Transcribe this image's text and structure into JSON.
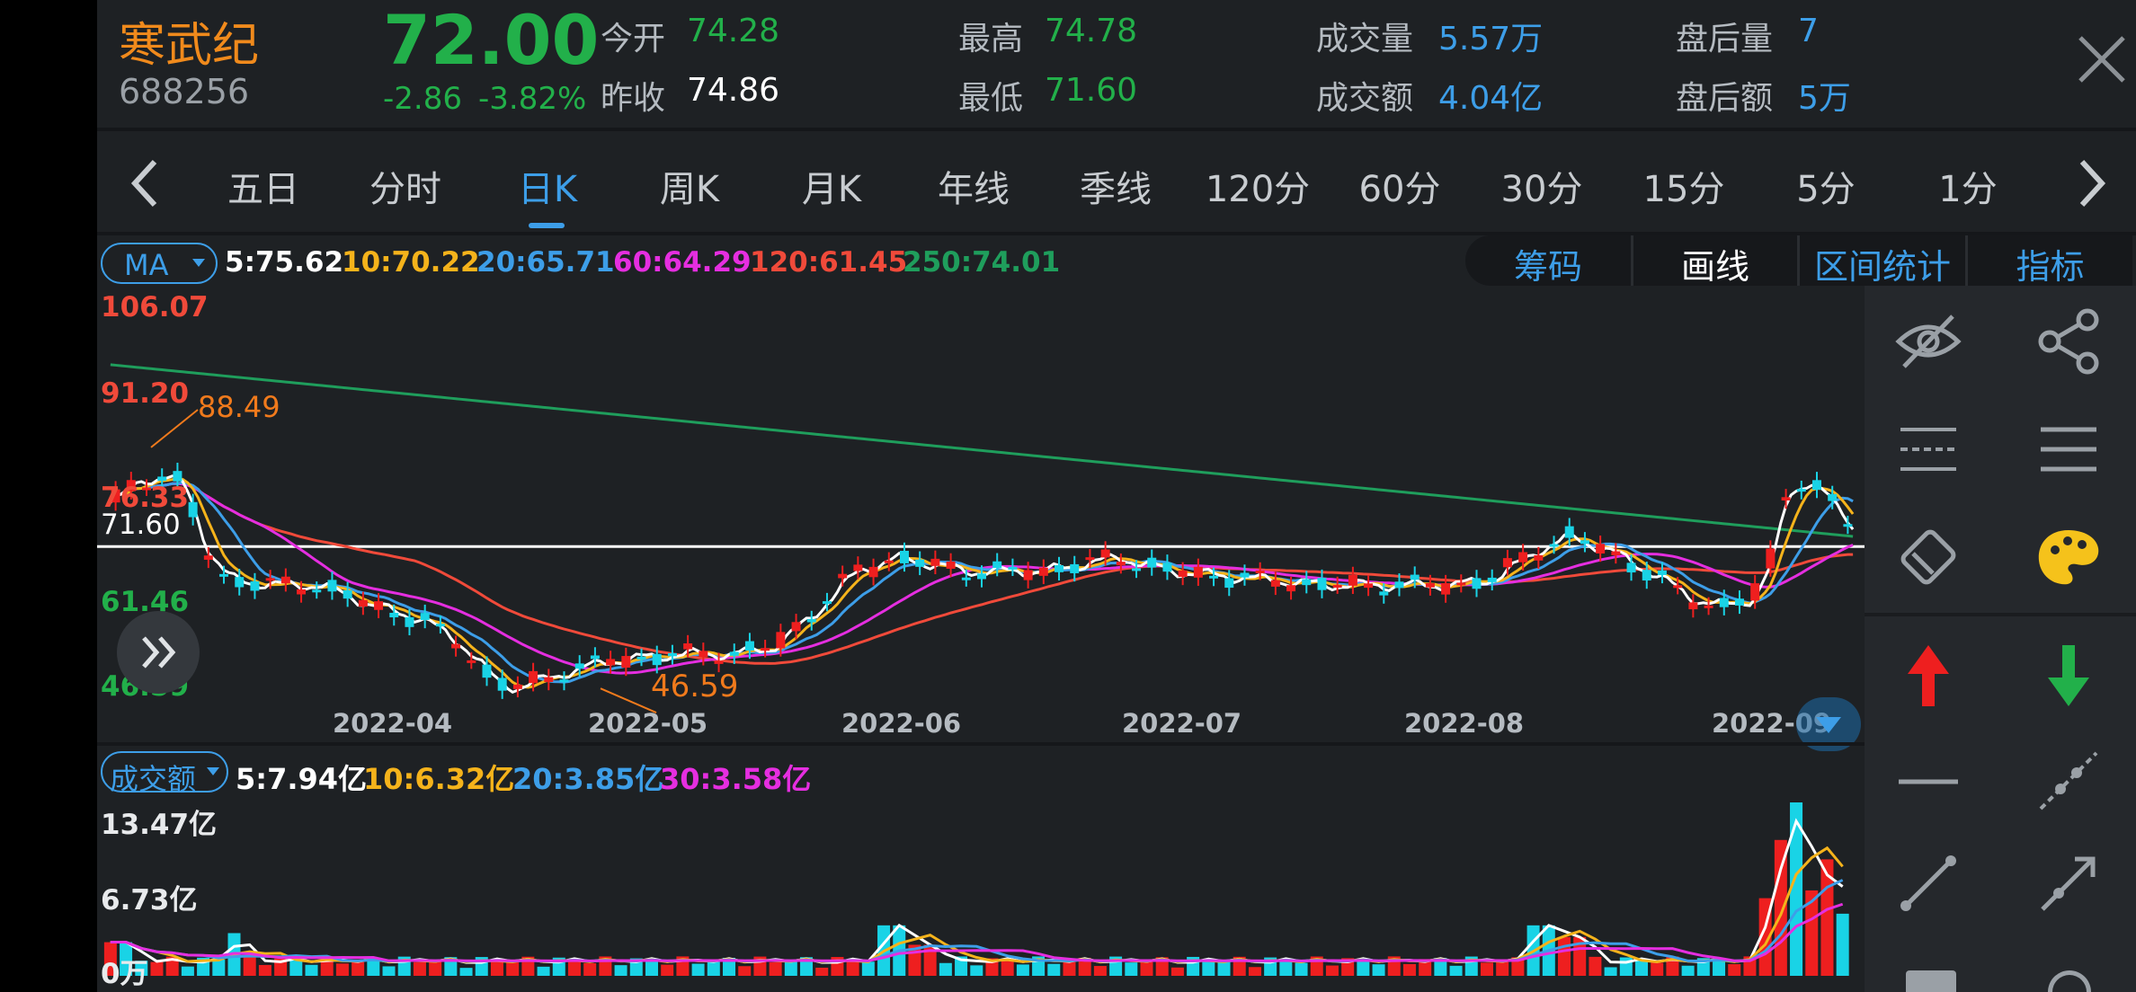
{
  "header": {
    "name": "寒武纪",
    "code": "688256",
    "price": "72.00",
    "change": "-2.86",
    "change_pct": "-3.82%",
    "quotes": [
      {
        "label": "今开",
        "value": "74.28",
        "color": "#22b04a"
      },
      {
        "label": "昨收",
        "value": "74.86",
        "color": "#ffffff"
      },
      {
        "label": "最高",
        "value": "74.78",
        "color": "#22b04a"
      },
      {
        "label": "最低",
        "value": "71.60",
        "color": "#22b04a"
      },
      {
        "label": "成交量",
        "value": "5.57万",
        "color": "#3d9ee8"
      },
      {
        "label": "成交额",
        "value": "4.04亿",
        "color": "#3d9ee8"
      },
      {
        "label": "盘后量",
        "value": "7",
        "color": "#3d9ee8"
      },
      {
        "label": "盘后额",
        "value": "5万",
        "color": "#3d9ee8"
      }
    ]
  },
  "tabs": {
    "items": [
      "五日",
      "分时",
      "日K",
      "周K",
      "月K",
      "年线",
      "季线",
      "120分",
      "60分",
      "30分",
      "15分",
      "5分",
      "1分"
    ],
    "active": "日K"
  },
  "ma_bar": {
    "selector": "MA",
    "values": [
      {
        "text": "5:75.62",
        "color": "#ffffff"
      },
      {
        "text": "10:70.22",
        "color": "#f5b31b"
      },
      {
        "text": "20:65.71",
        "color": "#3d9ee8"
      },
      {
        "text": "60:64.29",
        "color": "#e52ee0"
      },
      {
        "text": "120:61.45",
        "color": "#f04a3a"
      },
      {
        "text": "250:74.01",
        "color": "#1f9e5c"
      }
    ],
    "tools": [
      "筹码",
      "画线",
      "区间统计",
      "指标"
    ]
  },
  "price_axis": {
    "top": "106.07",
    "high": "91.20",
    "mid": "76.33",
    "current": "71.60",
    "low_mid": "61.46",
    "bottom": "46.59",
    "annot_high": "88.49",
    "annot_low": "46.59"
  },
  "date_labels": [
    "2022-04",
    "2022-05",
    "2022-06",
    "2022-07",
    "2022-08",
    "2022-09"
  ],
  "volume_bar": {
    "selector": "成交额",
    "values": [
      {
        "text": "5:7.94亿",
        "color": "#ffffff"
      },
      {
        "text": "10:6.32亿",
        "color": "#f5b31b"
      },
      {
        "text": "20:3.85亿",
        "color": "#3d9ee8"
      },
      {
        "text": "30:3.58亿",
        "color": "#e52ee0"
      }
    ],
    "axis_top": "13.47亿",
    "axis_mid": "6.73亿",
    "axis_bottom": "0万"
  },
  "side_tools": [
    "hide-eye-icon",
    "share-icon",
    "dashed-lines-icon",
    "solid-lines-icon",
    "eraser-icon",
    "palette-icon",
    "up-arrow-icon",
    "down-arrow-icon",
    "horizontal-line-icon",
    "dotted-ray-icon",
    "segment-line-icon",
    "ray-arrow-icon"
  ],
  "colors": {
    "up": "#ee1f1f",
    "down": "#19d3e6",
    "accent": "#3d9ee8",
    "ma5": "#ffffff",
    "ma10": "#f5b31b",
    "ma20": "#3d9ee8",
    "ma60": "#e52ee0",
    "ma120": "#f04a3a",
    "ma250": "#1f9e5c"
  }
}
